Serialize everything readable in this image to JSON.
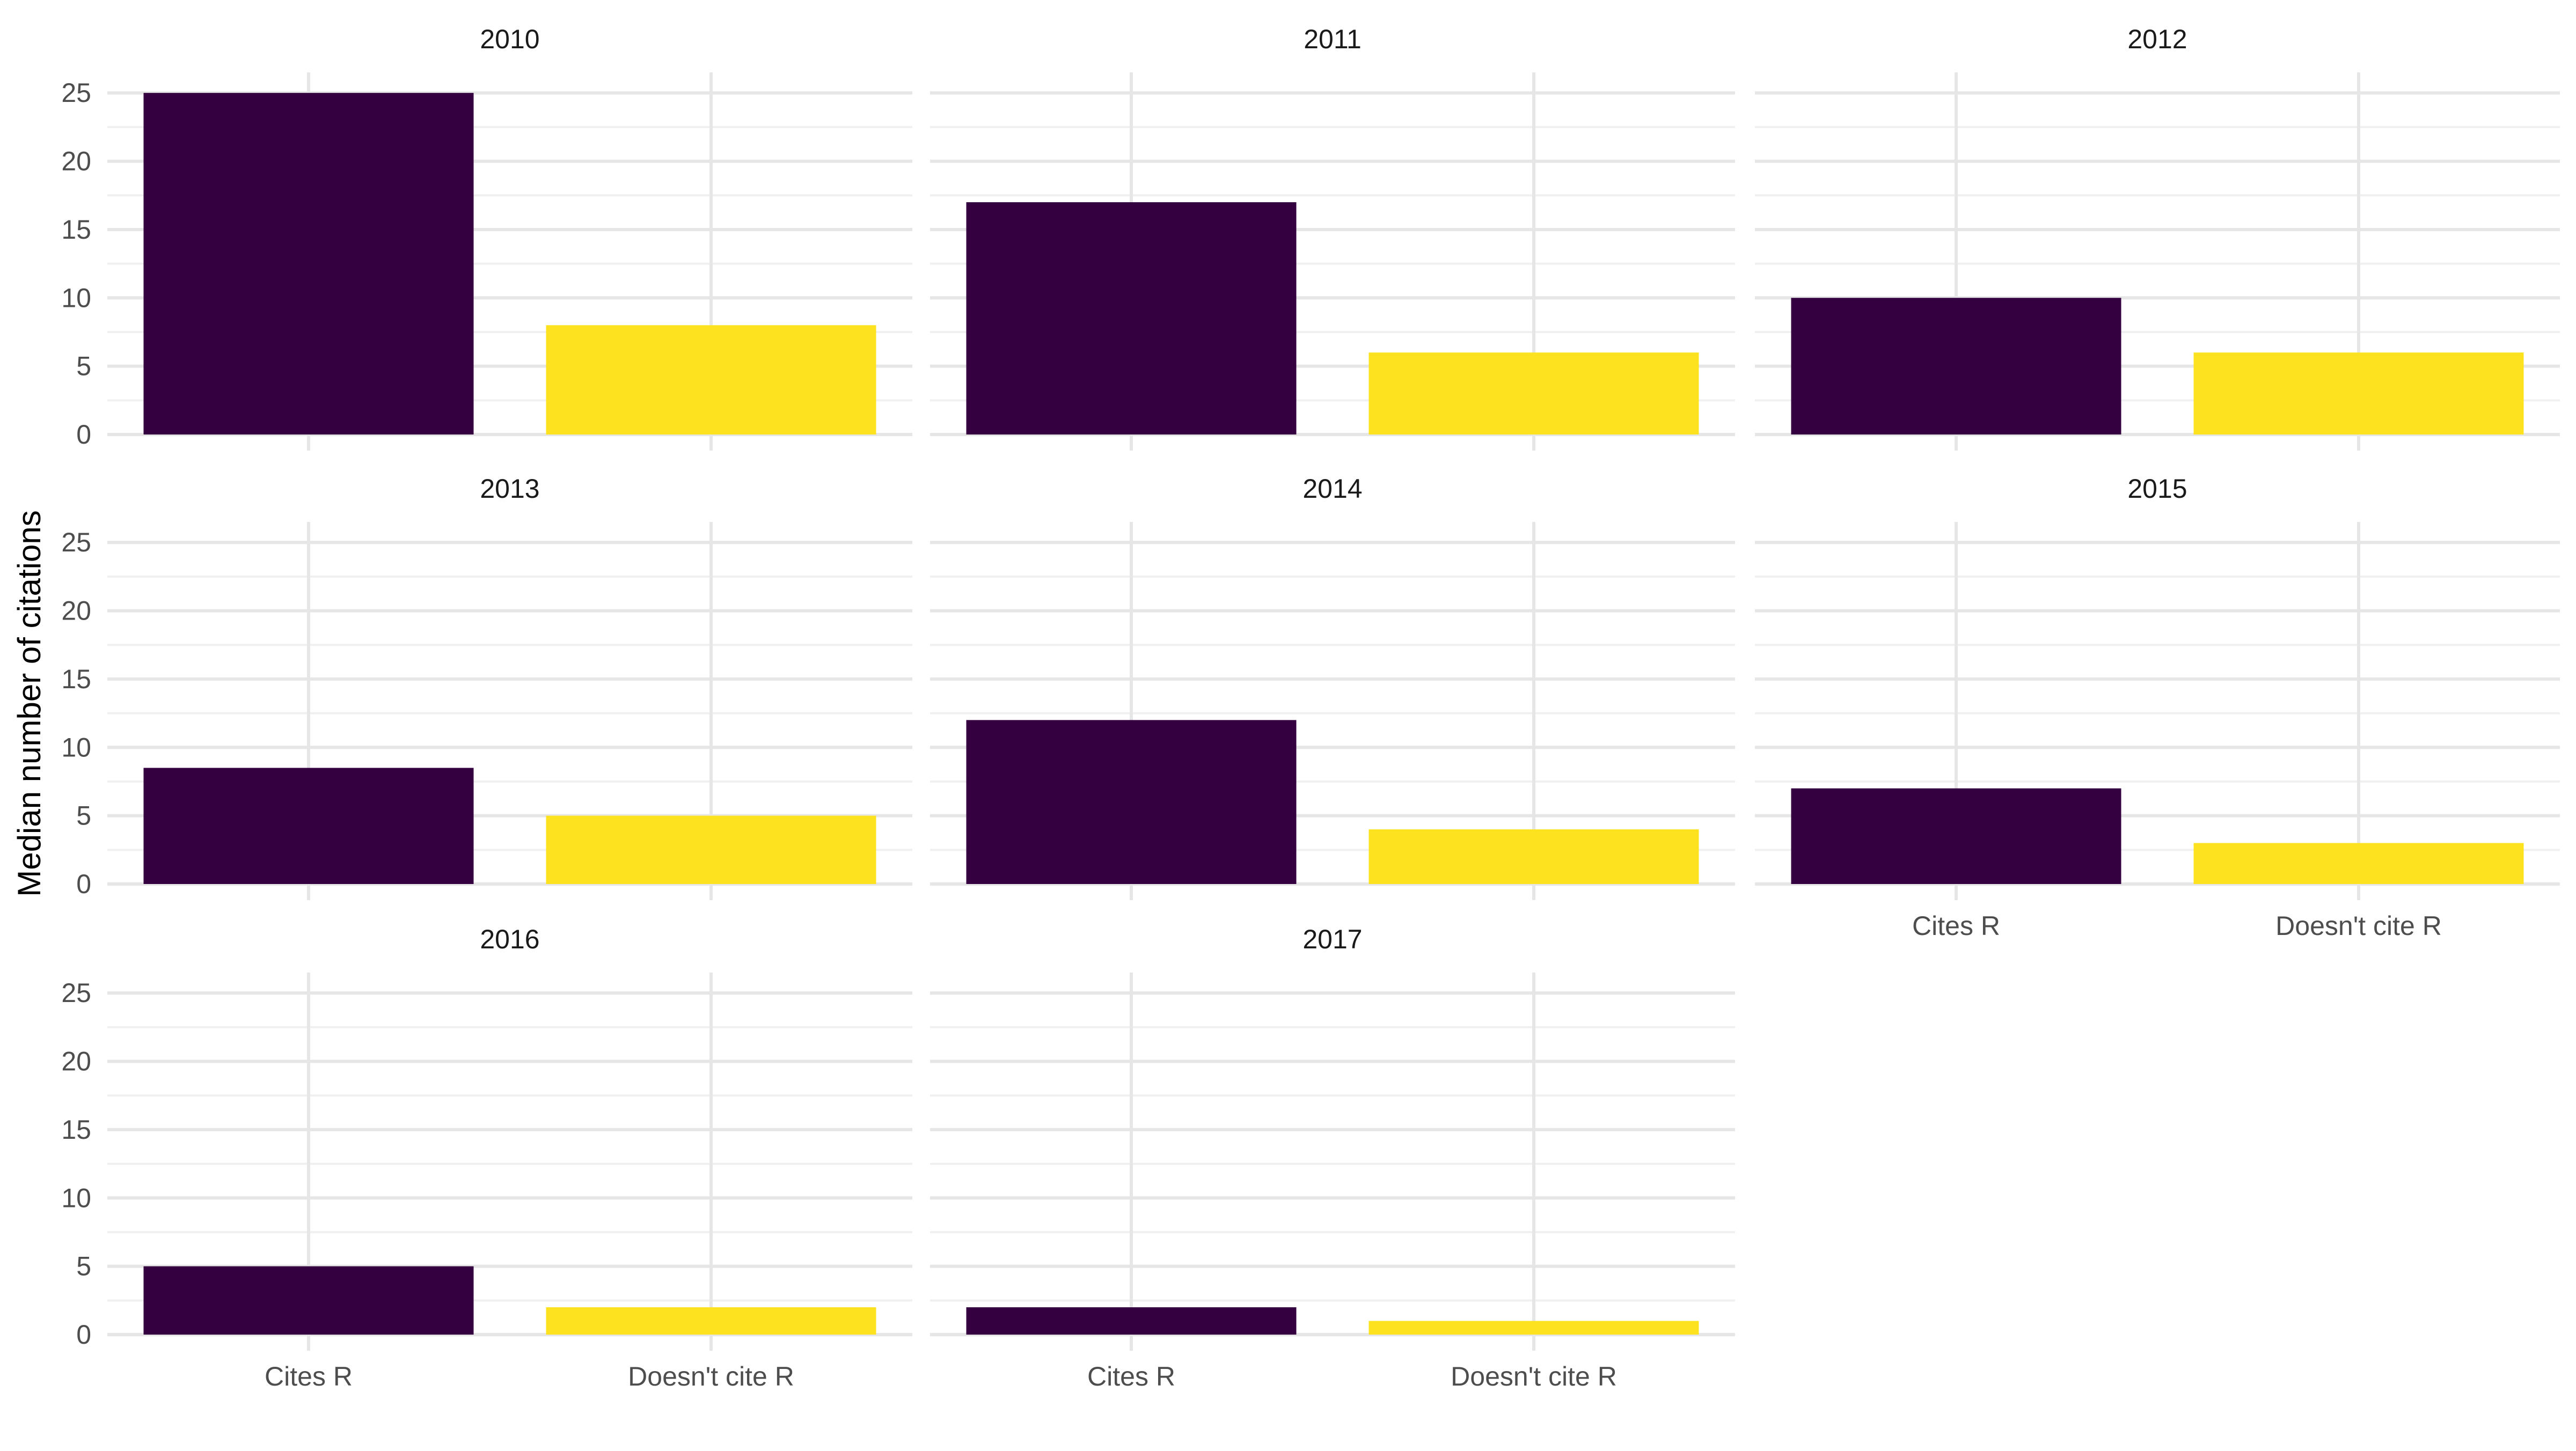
{
  "chart_data": {
    "type": "bar",
    "ylabel": "Median number of citations",
    "xlabel": "",
    "categories": [
      "Cites R",
      "Doesn't cite R"
    ],
    "colors": {
      "Cites R": "#350040",
      "Doesn't cite R": "#FDE31F",
      "grid_major": "#E6E6E6",
      "grid_minor": "#F0F0F0",
      "axis_text": "#4D4D4D",
      "strip_text": "#1A1A1A"
    },
    "ylim": [
      0,
      26.5
    ],
    "y_ticks": [
      "0",
      "5",
      "10",
      "15",
      "20",
      "25"
    ],
    "grid": true,
    "legend": "none",
    "panels": [
      {
        "facet": "2010",
        "values": [
          25,
          8
        ]
      },
      {
        "facet": "2011",
        "values": [
          17,
          6
        ]
      },
      {
        "facet": "2012",
        "values": [
          10,
          6
        ]
      },
      {
        "facet": "2013",
        "values": [
          8.5,
          5
        ]
      },
      {
        "facet": "2014",
        "values": [
          12,
          4
        ]
      },
      {
        "facet": "2015",
        "values": [
          7,
          3
        ]
      },
      {
        "facet": "2016",
        "values": [
          5,
          2
        ]
      },
      {
        "facet": "2017",
        "values": [
          2,
          1
        ]
      }
    ]
  }
}
